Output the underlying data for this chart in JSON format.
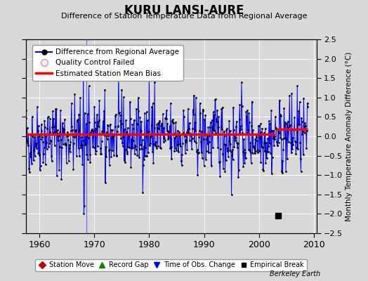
{
  "title": "KURU LANSI-AURE",
  "subtitle": "Difference of Station Temperature Data from Regional Average",
  "ylabel": "Monthly Temperature Anomaly Difference (°C)",
  "ylim": [
    -2.5,
    2.5
  ],
  "yticks": [
    -2.5,
    -2,
    -1.5,
    -1,
    -0.5,
    0,
    0.5,
    1,
    1.5,
    2,
    2.5
  ],
  "xlim": [
    1957.5,
    2010.5
  ],
  "xticks": [
    1960,
    1970,
    1980,
    1990,
    2000,
    2010
  ],
  "start_year": 1957,
  "end_year": 2008,
  "mean_bias": 0.05,
  "bias_late": 0.18,
  "bias_change_year": 2003,
  "empirical_break_year": 2003.5,
  "empirical_break_value": -2.05,
  "time_of_obs_change_year": 1968.5,
  "background_color": "#d8d8d8",
  "plot_bg_color": "#d8d8d8",
  "line_color": "#0000ff",
  "dot_color": "#000000",
  "bias_color": "#ff0000",
  "grid_color": "#ffffff",
  "seed": 42
}
